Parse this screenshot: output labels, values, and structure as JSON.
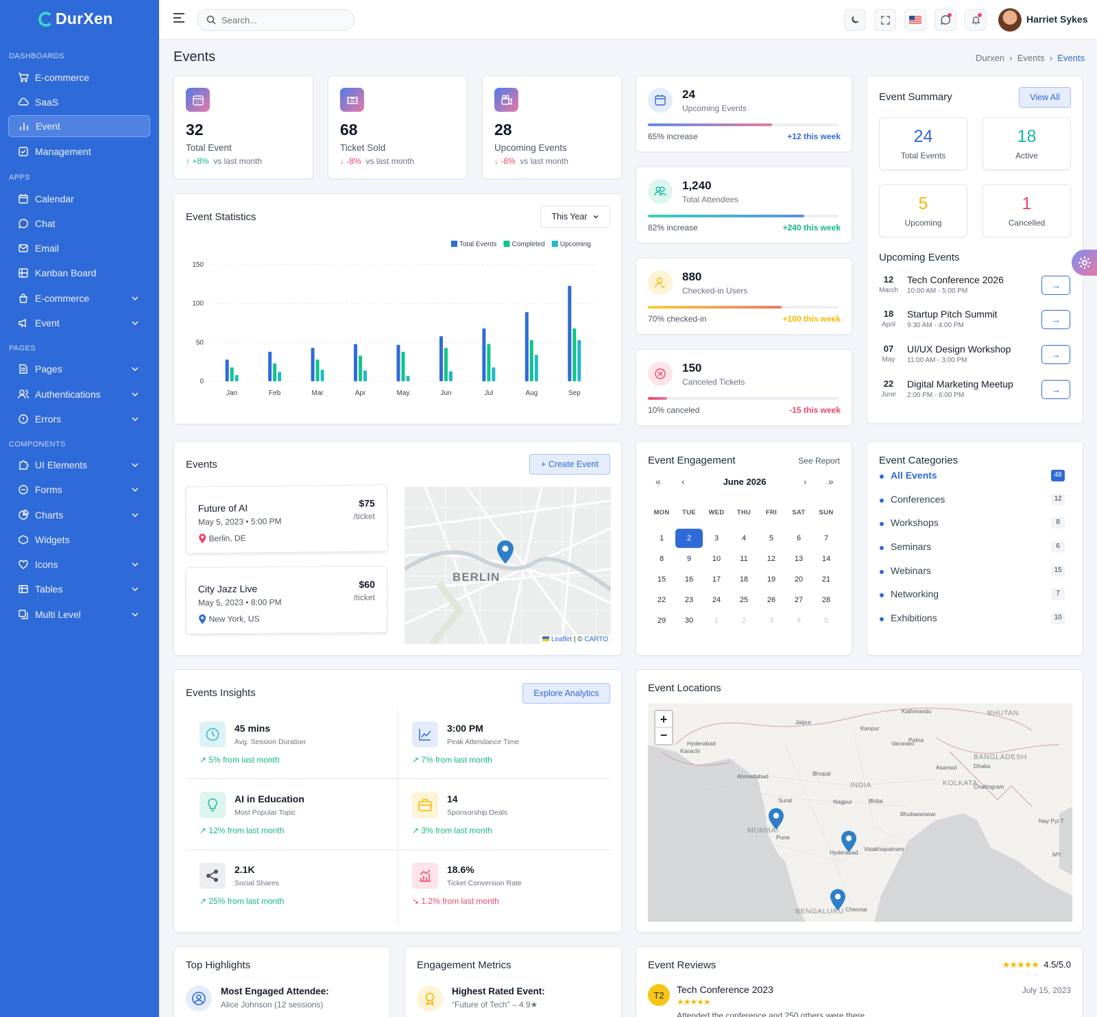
{
  "brand": {
    "name": "DurXen"
  },
  "sidebar": {
    "sections": {
      "dashboards": "DASHBOARDS",
      "apps": "APPS",
      "pages": "PAGES",
      "components": "COMPONENTS"
    },
    "items": [
      {
        "label": "E-commerce"
      },
      {
        "label": "SaaS"
      },
      {
        "label": "Event"
      },
      {
        "label": "Management"
      },
      {
        "label": "Calendar"
      },
      {
        "label": "Chat"
      },
      {
        "label": "Email"
      },
      {
        "label": "Kanban Board"
      },
      {
        "label": "E-commerce"
      },
      {
        "label": "Event"
      },
      {
        "label": "Pages"
      },
      {
        "label": "Authentications"
      },
      {
        "label": "Errors"
      },
      {
        "label": "UI Elements"
      },
      {
        "label": "Forms"
      },
      {
        "label": "Charts"
      },
      {
        "label": "Widgets"
      },
      {
        "label": "Icons"
      },
      {
        "label": "Tables"
      },
      {
        "label": "Multi Level"
      }
    ]
  },
  "topbar": {
    "search_placeholder": "Search...",
    "user_name": "Harriet Sykes"
  },
  "page": {
    "title": "Events",
    "breadcrumb": [
      "Durxen",
      "Events",
      "Events"
    ]
  },
  "stats": [
    {
      "value": "32",
      "label": "Total Event",
      "change": "+8%",
      "suffix": "vs last month",
      "dir": "up"
    },
    {
      "value": "68",
      "label": "Ticket Sold",
      "change": "-8%",
      "suffix": "vs last month",
      "dir": "down"
    },
    {
      "value": "28",
      "label": "Upcoming Events",
      "change": "-8%",
      "suffix": "vs last month",
      "dir": "down"
    }
  ],
  "kpis": [
    {
      "value": "24",
      "label": "Upcoming Events",
      "note": "65% increase",
      "week": "+12 this week",
      "progress": 0.65,
      "color": "#2f6ad9"
    },
    {
      "value": "1,240",
      "label": "Total Attendees",
      "note": "82% increase",
      "week": "+240 this week",
      "progress": 0.82,
      "color": "#10b981"
    },
    {
      "value": "880",
      "label": "Checked-in Users",
      "note": "70% checked-in",
      "week": "+100 this week",
      "progress": 0.7,
      "color": "#f5b800"
    },
    {
      "value": "150",
      "label": "Canceled Tickets",
      "note": "10% canceled",
      "week": "-15 this week",
      "progress": 0.1,
      "color": "#ef4466"
    }
  ],
  "summary": {
    "title": "Event Summary",
    "view_all": "View All",
    "boxes": [
      {
        "value": "24",
        "label": "Total Events",
        "color": "#2f6ad9"
      },
      {
        "value": "18",
        "label": "Active",
        "color": "#14b8a6"
      },
      {
        "value": "5",
        "label": "Upcoming",
        "color": "#f5b800"
      },
      {
        "value": "1",
        "label": "Cancelled",
        "color": "#ef4466"
      }
    ],
    "upcoming_title": "Upcoming Events",
    "upcoming": [
      {
        "day": "12",
        "month": "March",
        "title": "Tech Conference 2026",
        "time": "10:00 AM - 5:00 PM"
      },
      {
        "day": "18",
        "month": "April",
        "title": "Startup Pitch Summit",
        "time": "9:30 AM - 4:00 PM"
      },
      {
        "day": "07",
        "month": "May",
        "title": "UI/UX Design Workshop",
        "time": "11:00 AM - 3:00 PM"
      },
      {
        "day": "22",
        "month": "June",
        "title": "Digital Marketing Meetup",
        "time": "2:00 PM - 6:00 PM"
      }
    ]
  },
  "statistics": {
    "title": "Event Statistics",
    "range": "This Year"
  },
  "chart_data": {
    "type": "bar",
    "categories": [
      "Jan",
      "Feb",
      "Mar",
      "Apr",
      "May",
      "Jun",
      "Jul",
      "Aug",
      "Sep"
    ],
    "series": [
      {
        "name": "Total Events",
        "color": "#2f6ad9",
        "values": [
          28,
          38,
          43,
          48,
          47,
          58,
          68,
          89,
          123
        ]
      },
      {
        "name": "Completed",
        "color": "#10c48a",
        "values": [
          18,
          23,
          28,
          33,
          38,
          43,
          48,
          53,
          68
        ]
      },
      {
        "name": "Upcoming",
        "color": "#22b8c9",
        "values": [
          8,
          12,
          15,
          14,
          7,
          13,
          18,
          34,
          53
        ]
      }
    ],
    "ylim": [
      0,
      150
    ],
    "yticks": [
      0,
      50,
      100,
      150
    ],
    "legend": "top-right",
    "grid": true
  },
  "events": {
    "title": "Events",
    "create": "+ Create Event",
    "list": [
      {
        "title": "Future of AI",
        "date": "May 5, 2023 • 5:00 PM",
        "location": "Berlin, DE",
        "price": "$75",
        "per": "/ticket",
        "pin": "#ef4466"
      },
      {
        "title": "City Jazz Live",
        "date": "May 5, 2023 • 8:00 PM",
        "location": "New York, US",
        "price": "$60",
        "per": "/ticket",
        "pin": "#2f6ad9"
      }
    ],
    "map_label": "BERLIN",
    "map_attr_leaflet": "Leaflet",
    "map_attr_sep": " | © ",
    "map_attr_carto": "CARTO"
  },
  "engagement": {
    "title": "Event Engagement",
    "see_report": "See Report",
    "month": "June 2026",
    "nav": {
      "first": "«",
      "prev": "‹",
      "next": "›",
      "last": "»"
    },
    "weekdays": [
      "MON",
      "TUE",
      "WED",
      "THU",
      "FRI",
      "SAT",
      "SUN"
    ],
    "weeks": [
      [
        "1",
        "2",
        "3",
        "4",
        "5",
        "6",
        "7"
      ],
      [
        "8",
        "9",
        "10",
        "11",
        "12",
        "13",
        "14"
      ],
      [
        "15",
        "16",
        "17",
        "18",
        "19",
        "20",
        "21"
      ],
      [
        "22",
        "23",
        "24",
        "25",
        "26",
        "27",
        "28"
      ],
      [
        "29",
        "30",
        "1",
        "2",
        "3",
        "4",
        "5"
      ]
    ],
    "selected": "2"
  },
  "categories": {
    "title": "Event Categories",
    "items": [
      {
        "label": "All Events",
        "count": "48"
      },
      {
        "label": "Conferences",
        "count": "12"
      },
      {
        "label": "Workshops",
        "count": "8"
      },
      {
        "label": "Seminars",
        "count": "6"
      },
      {
        "label": "Webinars",
        "count": "15"
      },
      {
        "label": "Networking",
        "count": "7"
      },
      {
        "label": "Exhibitions",
        "count": "10"
      }
    ]
  },
  "insights": {
    "title": "Events Insights",
    "explore": "Explore Analytics",
    "items": [
      {
        "value": "45 mins",
        "label": "Avg. Session Duration",
        "trend": "↗ 5% from last month",
        "dir": "up"
      },
      {
        "value": "3:00 PM",
        "label": "Peak Attendance Time",
        "trend": "↗ 7% from last month",
        "dir": "up"
      },
      {
        "value": "AI in Education",
        "label": "Most Popular Topic",
        "trend": "↗ 12% from last month",
        "dir": "up"
      },
      {
        "value": "14",
        "label": "Sponsorship Deals",
        "trend": "↗ 3% from last month",
        "dir": "up"
      },
      {
        "value": "2.1K",
        "label": "Social Shares",
        "trend": "↗ 25% from last month",
        "dir": "up"
      },
      {
        "value": "18.6%",
        "label": "Ticket Conversion Rate",
        "trend": "↘ 1.2% from last month",
        "dir": "down"
      }
    ]
  },
  "locations": {
    "title": "Event Locations",
    "zoom_in": "+",
    "zoom_out": "−",
    "labels": [
      "Jaipur",
      "Kathmandu",
      "BHUTAN",
      "Kanpur",
      "Hyderabad",
      "Karachi",
      "Varanasi",
      "Patna",
      "BANGLADESH",
      "Dhaka",
      "Asansol",
      "Ahmedabad",
      "Bhopal",
      "INDIA",
      "KOLKATA",
      "Chattogram",
      "Surat",
      "Nagpur",
      "Bhilai",
      "Bhubaneswar",
      "MUMBAI",
      "Pune",
      "Hyderabad",
      "Visakhapatnam",
      "Nay Pyi T",
      "MY",
      "BENGALURU",
      "Chennai"
    ]
  },
  "bottom": {
    "highlights": {
      "title": "Top Highlights",
      "item_title": "Most Engaged Attendee:",
      "item_sub": "Alice Johnson (12 sessions)"
    },
    "metrics": {
      "title": "Engagement Metrics",
      "item_title": "Highest Rated Event:",
      "item_sub": "“Future of Tech” – 4.9★"
    },
    "reviews": {
      "title": "Event Reviews",
      "stars": "★★★★★",
      "rating": "4.5/5.0",
      "avatar": "T2",
      "event": "Tech Conference 2023",
      "date": "July 15, 2023",
      "review_stars": "★★★★★",
      "text": "Attended the conference and 250 others were there"
    }
  }
}
